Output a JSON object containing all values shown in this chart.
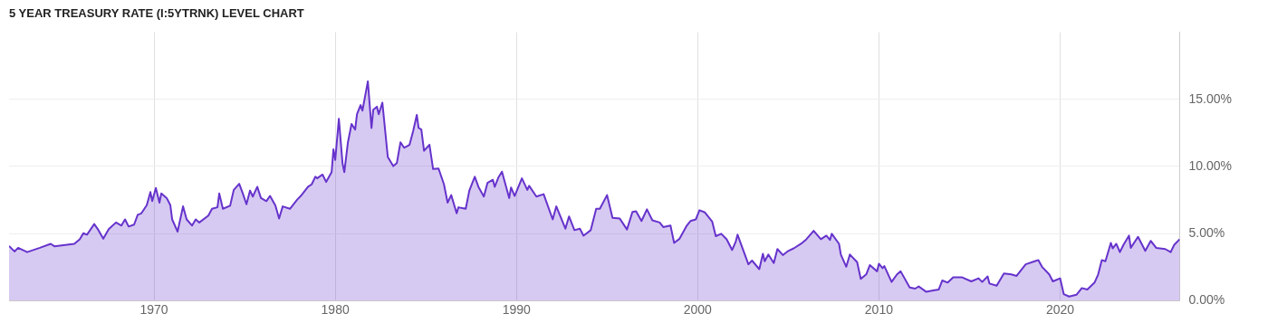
{
  "chart_data": {
    "type": "area",
    "title": "5 YEAR TREASURY RATE (I:5YTRNK) LEVEL CHART",
    "xlim": [
      1962.0,
      2026.6
    ],
    "xticks": [
      1970,
      1980,
      1990,
      2000,
      2010,
      2020
    ],
    "ylim": [
      0,
      20
    ],
    "yticks": [
      {
        "value": 0,
        "label": "0.00%"
      },
      {
        "value": 5,
        "label": "5.00%"
      },
      {
        "value": 10,
        "label": "10.00%"
      },
      {
        "value": 15,
        "label": "15.00%"
      }
    ],
    "grid": true,
    "legend": false,
    "series": [
      {
        "color": "#6633cc",
        "x": [
          1962.0,
          1962.3,
          1962.5,
          1963.0,
          1963.7,
          1964.3,
          1964.5,
          1965.6,
          1965.9,
          1966.1,
          1966.3,
          1966.7,
          1966.9,
          1967.2,
          1967.5,
          1967.9,
          1968.2,
          1968.4,
          1968.6,
          1968.9,
          1969.1,
          1969.3,
          1969.6,
          1969.8,
          1969.9,
          1970.1,
          1970.3,
          1970.4,
          1970.7,
          1970.9,
          1971.0,
          1971.3,
          1971.5,
          1971.6,
          1971.8,
          1972.1,
          1972.3,
          1972.5,
          1973.0,
          1973.2,
          1973.5,
          1973.6,
          1973.8,
          1974.2,
          1974.4,
          1974.7,
          1974.9,
          1975.1,
          1975.3,
          1975.45,
          1975.7,
          1975.9,
          1976.2,
          1976.4,
          1976.7,
          1976.9,
          1977.1,
          1977.5,
          1977.9,
          1978.1,
          1978.5,
          1978.7,
          1978.9,
          1979.0,
          1979.3,
          1979.5,
          1979.8,
          1979.9,
          1980.0,
          1980.2,
          1980.4,
          1980.5,
          1980.7,
          1980.9,
          1981.1,
          1981.2,
          1981.4,
          1981.5,
          1981.8,
          1982.0,
          1982.1,
          1982.3,
          1982.4,
          1982.6,
          1982.9,
          1983.2,
          1983.4,
          1983.6,
          1983.8,
          1984.1,
          1984.3,
          1984.5,
          1984.6,
          1984.75,
          1984.9,
          1985.2,
          1985.4,
          1985.7,
          1986.0,
          1986.2,
          1986.4,
          1986.7,
          1986.8,
          1987.2,
          1987.4,
          1987.7,
          1987.9,
          1988.2,
          1988.4,
          1988.7,
          1988.8,
          1989.0,
          1989.2,
          1989.6,
          1989.7,
          1989.9,
          1990.3,
          1990.6,
          1990.7,
          1991.1,
          1991.5,
          1992.0,
          1992.2,
          1992.7,
          1992.9,
          1993.2,
          1993.5,
          1993.7,
          1994.1,
          1994.4,
          1994.6,
          1995.0,
          1995.3,
          1995.7,
          1996.1,
          1996.4,
          1996.6,
          1996.9,
          1997.2,
          1997.5,
          1997.9,
          1998.1,
          1998.5,
          1998.7,
          1999.0,
          1999.4,
          1999.6,
          1999.9,
          2000.1,
          2000.4,
          2000.8,
          2001.0,
          2001.3,
          2001.6,
          2001.9,
          2002.1,
          2002.2,
          2002.8,
          2003.0,
          2003.4,
          2003.6,
          2003.7,
          2003.9,
          2004.2,
          2004.4,
          2004.7,
          2005.0,
          2005.3,
          2005.7,
          2006.0,
          2006.4,
          2006.8,
          2007.1,
          2007.3,
          2007.4,
          2007.8,
          2007.9,
          2008.2,
          2008.4,
          2008.8,
          2009.0,
          2009.3,
          2009.5,
          2009.9,
          2010.0,
          2010.2,
          2010.3,
          2010.7,
          2011.0,
          2011.2,
          2011.7,
          2012.0,
          2012.2,
          2012.6,
          2013.0,
          2013.3,
          2013.5,
          2013.8,
          2014.1,
          2014.6,
          2015.1,
          2015.5,
          2015.7,
          2016.0,
          2016.1,
          2016.5,
          2016.9,
          2017.3,
          2017.6,
          2018.1,
          2018.6,
          2018.8,
          2019.0,
          2019.4,
          2019.6,
          2020.0,
          2020.2,
          2020.5,
          2020.9,
          2021.2,
          2021.5,
          2021.9,
          2022.1,
          2022.3,
          2022.5,
          2022.8,
          2022.9,
          2023.1,
          2023.3,
          2023.5,
          2023.8,
          2023.9,
          2024.3,
          2024.7,
          2025.0,
          2025.3,
          2025.8,
          2026.1,
          2026.3,
          2026.6
        ],
        "values": [
          4.07,
          3.66,
          3.93,
          3.61,
          3.93,
          4.23,
          4.05,
          4.23,
          4.57,
          5.02,
          4.91,
          5.7,
          5.32,
          4.61,
          5.32,
          5.82,
          5.59,
          6.05,
          5.52,
          5.66,
          6.39,
          6.5,
          7.11,
          8.09,
          7.41,
          8.39,
          7.3,
          7.98,
          7.64,
          7.11,
          6.05,
          5.14,
          6.39,
          7.02,
          6.05,
          5.59,
          6.05,
          5.82,
          6.34,
          6.84,
          6.95,
          7.98,
          6.84,
          7.07,
          8.25,
          8.7,
          7.98,
          7.18,
          8.2,
          7.75,
          8.48,
          7.64,
          7.41,
          7.8,
          7.07,
          6.11,
          7.02,
          6.84,
          7.52,
          7.8,
          8.48,
          8.66,
          9.23,
          9.11,
          9.39,
          8.84,
          9.57,
          11.27,
          10.48,
          13.55,
          10.25,
          9.57,
          11.8,
          13.16,
          12.75,
          13.89,
          14.57,
          14.16,
          16.34,
          12.86,
          14.23,
          14.45,
          13.89,
          14.75,
          10.7,
          10.02,
          10.25,
          11.8,
          11.39,
          11.61,
          12.64,
          13.84,
          12.86,
          12.75,
          11.16,
          11.61,
          9.8,
          9.84,
          8.66,
          7.3,
          7.86,
          6.5,
          6.95,
          6.84,
          8.2,
          9.23,
          8.48,
          7.75,
          8.77,
          9.0,
          8.48,
          9.16,
          9.61,
          7.64,
          8.43,
          7.8,
          9.11,
          8.25,
          8.55,
          7.75,
          7.93,
          6.05,
          7.02,
          5.36,
          6.27,
          5.25,
          5.36,
          4.84,
          5.25,
          6.84,
          6.84,
          7.86,
          6.16,
          6.11,
          5.3,
          6.61,
          6.66,
          5.93,
          6.8,
          5.98,
          5.82,
          5.48,
          5.59,
          4.3,
          4.61,
          5.59,
          5.93,
          6.05,
          6.73,
          6.57,
          5.89,
          4.8,
          4.98,
          4.57,
          3.77,
          4.39,
          4.91,
          2.7,
          2.98,
          2.34,
          3.48,
          2.93,
          3.43,
          2.8,
          3.84,
          3.39,
          3.7,
          3.89,
          4.23,
          4.57,
          5.2,
          4.57,
          4.84,
          4.52,
          4.98,
          4.23,
          3.43,
          2.52,
          3.43,
          2.86,
          1.61,
          1.95,
          2.64,
          2.18,
          2.75,
          2.41,
          2.57,
          1.39,
          1.95,
          2.18,
          0.98,
          0.89,
          1.05,
          0.66,
          0.75,
          0.82,
          1.5,
          1.34,
          1.73,
          1.73,
          1.43,
          1.66,
          1.39,
          1.8,
          1.27,
          1.11,
          2.02,
          1.95,
          1.84,
          2.7,
          2.93,
          3.02,
          2.52,
          1.95,
          1.43,
          1.66,
          0.48,
          0.3,
          0.43,
          0.93,
          0.82,
          1.34,
          1.95,
          3.02,
          2.93,
          4.3,
          3.89,
          4.23,
          3.61,
          4.16,
          4.84,
          3.93,
          4.75,
          3.7,
          4.45,
          3.93,
          3.84,
          3.61,
          4.16,
          4.57
        ]
      }
    ]
  }
}
